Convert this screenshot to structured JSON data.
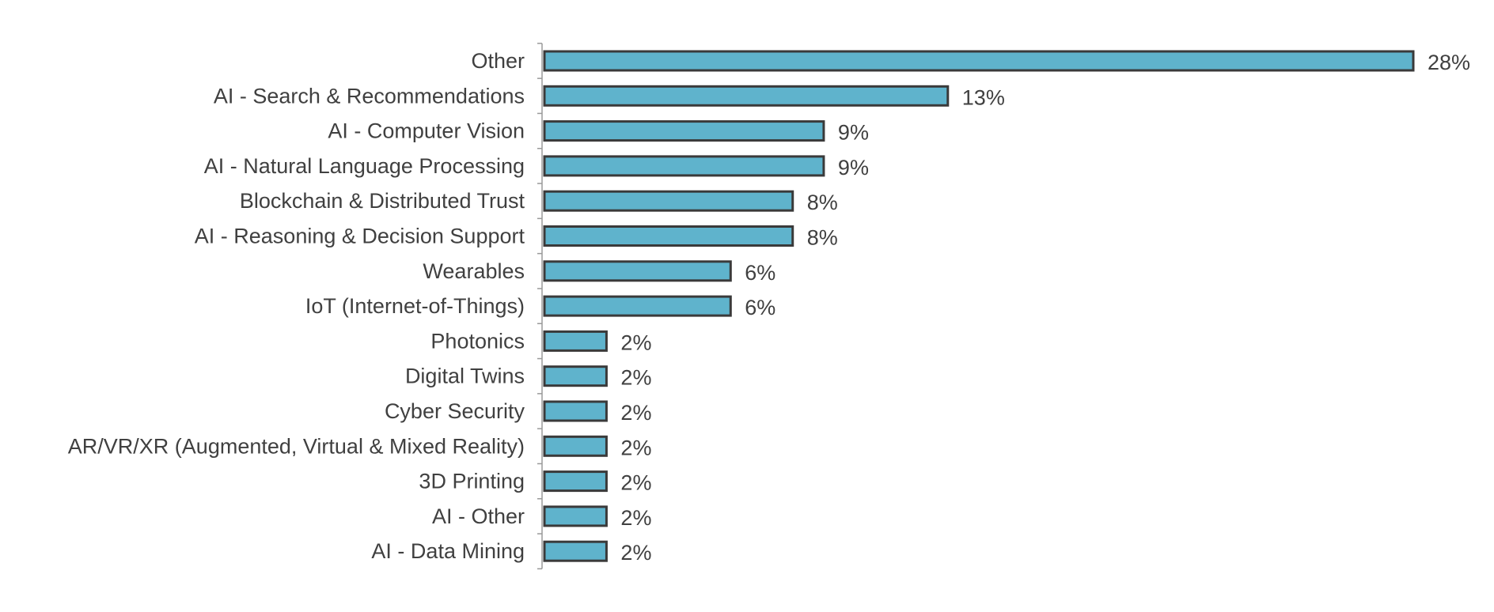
{
  "chart_data": {
    "type": "bar",
    "orientation": "horizontal",
    "categories": [
      "Other",
      "AI - Search & Recommendations",
      "AI - Computer Vision",
      "AI - Natural Language Processing",
      "Blockchain & Distributed Trust",
      "AI - Reasoning & Decision Support",
      "Wearables",
      "IoT (Internet-of-Things)",
      "Photonics",
      "Digital Twins",
      "Cyber Security",
      "AR/VR/XR (Augmented, Virtual & Mixed Reality)",
      "3D Printing",
      "AI - Other",
      "AI - Data Mining"
    ],
    "values": [
      28,
      13,
      9,
      9,
      8,
      8,
      6,
      6,
      2,
      2,
      2,
      2,
      2,
      2,
      2
    ],
    "data_labels": [
      "28%",
      "13%",
      "9%",
      "9%",
      "8%",
      "8%",
      "6%",
      "6%",
      "2%",
      "2%",
      "2%",
      "2%",
      "2%",
      "2%",
      "2%"
    ],
    "unit": "%",
    "title": "",
    "xlabel": "",
    "ylabel": "",
    "xlim": [
      0,
      28
    ],
    "grid": false,
    "legend": "none",
    "colors": {
      "bar_fill": "#5fb3cc",
      "bar_stroke": "#3a3a3a",
      "text": "#404040",
      "axis": "#9a9a9a"
    }
  }
}
